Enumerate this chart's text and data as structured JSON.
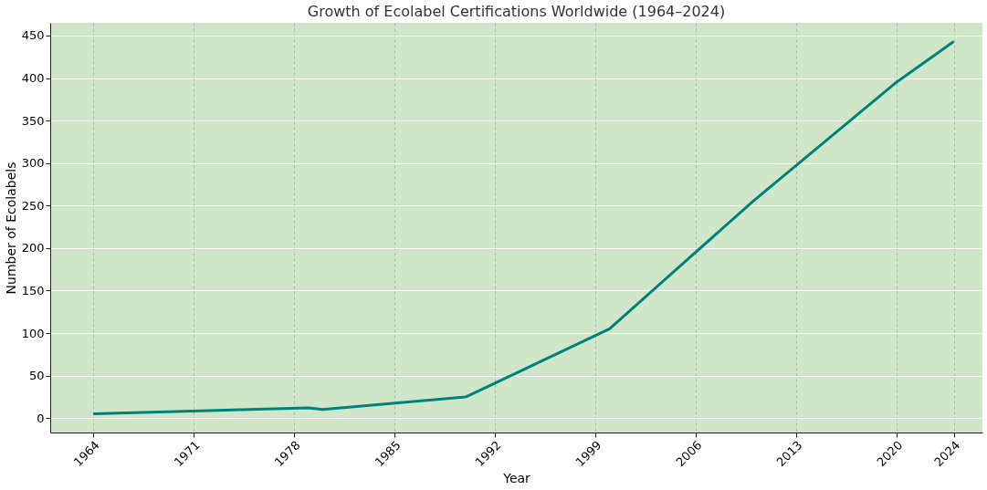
{
  "chart_data": {
    "type": "line",
    "title": "Growth of Ecolabel Certifications Worldwide (1964–2024)",
    "xlabel": "Year",
    "ylabel": "Number of Ecolabels",
    "x": [
      1964,
      1979,
      1980,
      1990,
      2000,
      2010,
      2020,
      2024
    ],
    "series": [
      {
        "color": "#00827a",
        "values": [
          5,
          12,
          10,
          25,
          105,
          255,
          395,
          443
        ]
      }
    ],
    "xlim": [
      1961,
      2026
    ],
    "xticks": [
      1964,
      1971,
      1978,
      1985,
      1992,
      1999,
      2006,
      2013,
      2020,
      2024
    ],
    "ylim": [
      -17,
      465
    ],
    "yticks": [
      0,
      50,
      100,
      150,
      200,
      250,
      300,
      350,
      400,
      450
    ],
    "grid": true,
    "marker": "none",
    "line_style": "solid"
  }
}
